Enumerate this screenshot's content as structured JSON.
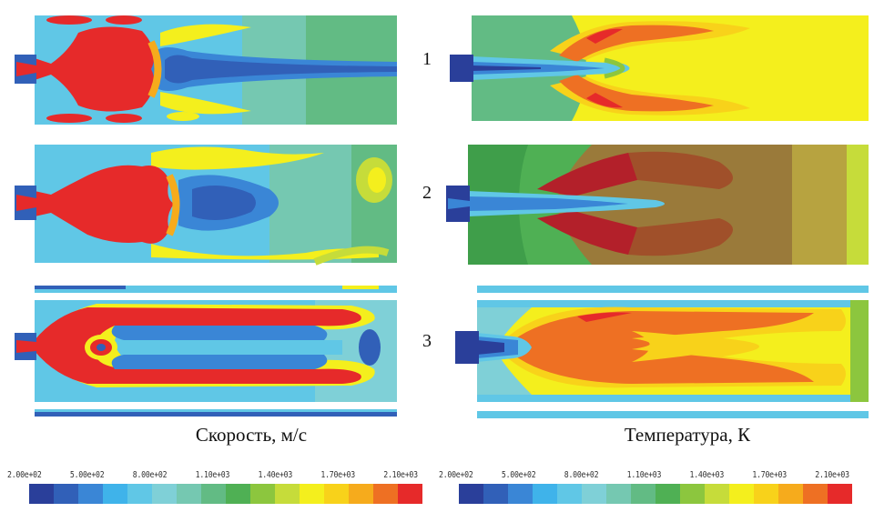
{
  "row_labels": [
    "1",
    "2",
    "3"
  ],
  "captions": {
    "velocity": "Скорость, м/с",
    "temperature": "Температура, К"
  },
  "colorbar": {
    "tick_labels": [
      "2.00e+02",
      "5.00e+02",
      "8.00e+02",
      "1.10e+03",
      "1.40e+03",
      "1.70e+03",
      "2.10e+03"
    ],
    "colors": [
      "#2a3f9a",
      "#3160b8",
      "#3a86d6",
      "#3fb3ea",
      "#60c7e6",
      "#7fd0d7",
      "#75c8b1",
      "#62bb84",
      "#4fb054",
      "#8cc63e",
      "#c6dc3a",
      "#f4ef1d",
      "#f8d21a",
      "#f6ab1c",
      "#ee7023",
      "#e62a2a"
    ]
  },
  "palette": {
    "red": "#e62a2a",
    "orange": "#ee7023",
    "yellow": "#f4ef1d",
    "lime": "#c6dc3a",
    "green": "#62bb84",
    "teal": "#7fd0d7",
    "cyan": "#60c7e6",
    "blue": "#3160b8",
    "darkblue": "#2a3f9a",
    "brown": "#9a7a3a",
    "darkred": "#b3202a"
  }
}
